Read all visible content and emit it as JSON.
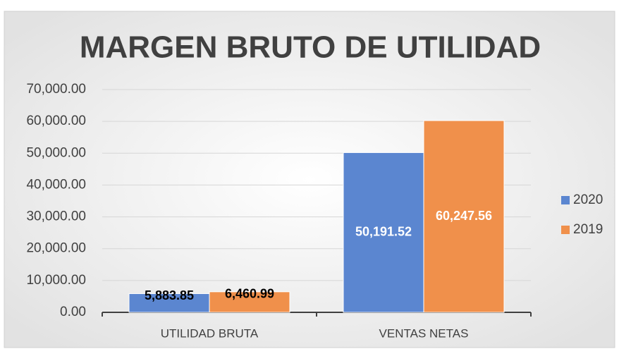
{
  "chart_data": {
    "type": "bar",
    "title": "MARGEN BRUTO DE UTILIDAD",
    "categories": [
      "UTILIDAD BRUTA",
      "VENTAS NETAS"
    ],
    "series": [
      {
        "name": "2020",
        "color": "#5b86d0",
        "values": [
          5883.85,
          50191.52
        ],
        "value_labels": [
          "5,883.85",
          "50,191.52"
        ]
      },
      {
        "name": "2019",
        "color": "#f0904b",
        "values": [
          6460.99,
          60247.56
        ],
        "value_labels": [
          "6,460.99",
          "60,247.56"
        ]
      }
    ],
    "ylim": [
      0,
      70000
    ],
    "yticks": [
      {
        "value": 0,
        "label": "0.00"
      },
      {
        "value": 10000,
        "label": "10,000.00"
      },
      {
        "value": 20000,
        "label": "20,000.00"
      },
      {
        "value": 30000,
        "label": "30,000.00"
      },
      {
        "value": 40000,
        "label": "40,000.00"
      },
      {
        "value": 50000,
        "label": "50,000.00"
      },
      {
        "value": 60000,
        "label": "60,000.00"
      },
      {
        "value": 70000,
        "label": "70,000.00"
      }
    ],
    "grid": true,
    "legend": "right"
  }
}
